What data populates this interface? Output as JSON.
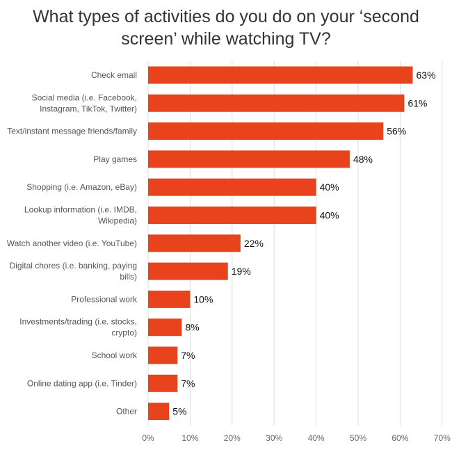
{
  "chart_data": {
    "type": "bar",
    "orientation": "horizontal",
    "title": "What types of activities do you do on your ‘second\nscreen’ while watching TV?",
    "categories": [
      "Check email",
      "Social media (i.e. Facebook,\nInstagram, TikTok, Twitter)",
      "Text/instant message friends/family",
      "Play games",
      "Shopping (i.e. Amazon, eBay)",
      "Lookup information (i.e. IMDB,\nWikipedia)",
      "Watch another video (i.e. YouTube)",
      "Digital chores (i.e. banking, paying\nbills)",
      "Professional work",
      "Investments/trading (i.e. stocks,\ncrypto)",
      "School work",
      "Online dating app (i.e. Tinder)",
      "Other"
    ],
    "values": [
      63,
      61,
      56,
      48,
      40,
      40,
      22,
      19,
      10,
      8,
      7,
      7,
      5
    ],
    "value_labels": [
      "63%",
      "61%",
      "56%",
      "48%",
      "40%",
      "40%",
      "22%",
      "19%",
      "10%",
      "8%",
      "7%",
      "7%",
      "5%"
    ],
    "xticks": [
      "0%",
      "10%",
      "20%",
      "30%",
      "40%",
      "50%",
      "60%",
      "70%"
    ],
    "xlim": [
      0,
      70
    ],
    "xlabel": "",
    "ylabel": "",
    "grid": true,
    "legend": "none",
    "bar_color": "#E8431C"
  }
}
